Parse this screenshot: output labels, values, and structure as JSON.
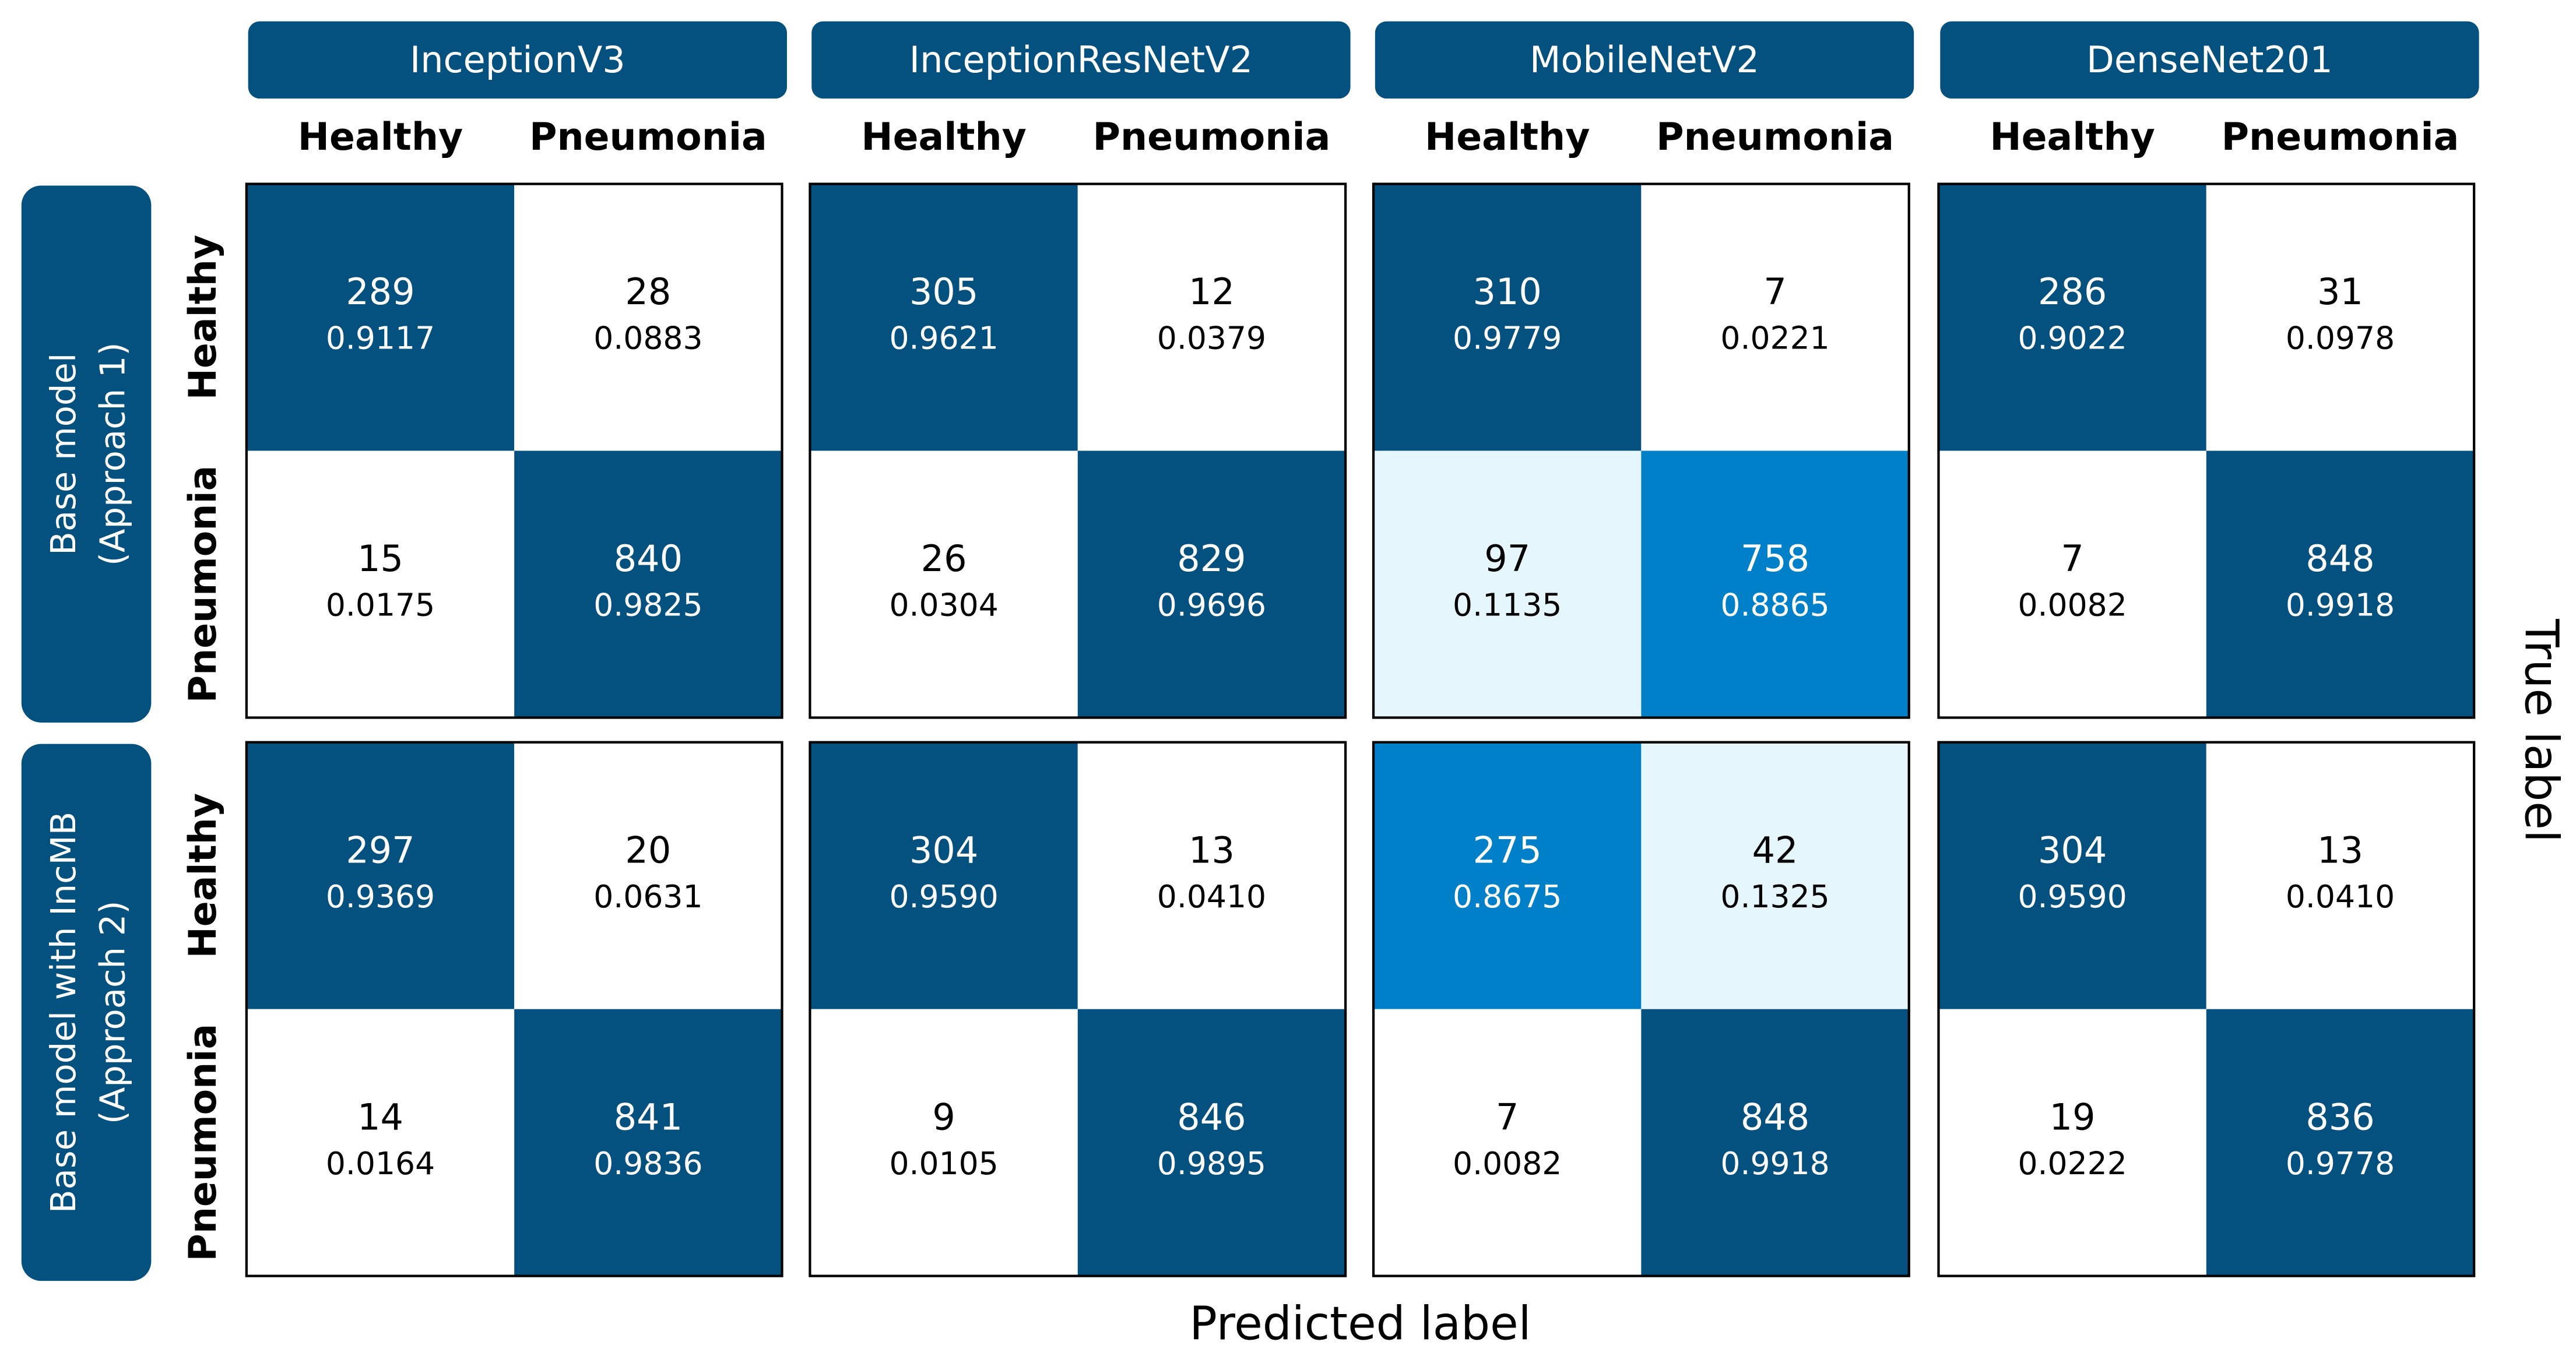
{
  "chart_data": {
    "type": "confusion_matrix_grid",
    "x_label": "Predicted label",
    "y_label": "True label",
    "classes": [
      "Healthy",
      "Pneumonia"
    ],
    "models": [
      "InceptionV3",
      "InceptionResNetV2",
      "MobileNetV2",
      "DenseNet201"
    ],
    "approaches": [
      [
        "Base model",
        "(Approach 1)"
      ],
      [
        "Base model with IncMB",
        "(Approach 2)"
      ]
    ],
    "matrices": [
      [
        {
          "counts": [
            [
              289,
              28
            ],
            [
              15,
              840
            ]
          ],
          "proportions": [
            [
              0.9117,
              0.0883
            ],
            [
              0.0175,
              0.9825
            ]
          ],
          "value_labels": [
            [
              "0.9117",
              "0.0883"
            ],
            [
              "0.0175",
              "0.9825"
            ]
          ],
          "colors": [
            [
              "#04507e",
              "#ffffff"
            ],
            [
              "#ffffff",
              "#04507e"
            ]
          ]
        },
        {
          "counts": [
            [
              305,
              12
            ],
            [
              26,
              829
            ]
          ],
          "proportions": [
            [
              0.9621,
              0.0379
            ],
            [
              0.0304,
              0.9696
            ]
          ],
          "value_labels": [
            [
              "0.9621",
              "0.0379"
            ],
            [
              "0.0304",
              "0.9696"
            ]
          ],
          "colors": [
            [
              "#04507e",
              "#ffffff"
            ],
            [
              "#ffffff",
              "#04507e"
            ]
          ]
        },
        {
          "counts": [
            [
              310,
              7
            ],
            [
              97,
              758
            ]
          ],
          "proportions": [
            [
              0.9779,
              0.0221
            ],
            [
              0.1135,
              0.8865
            ]
          ],
          "value_labels": [
            [
              "0.9779",
              "0.0221"
            ],
            [
              "0.1135",
              "0.8865"
            ]
          ],
          "colors": [
            [
              "#04507e",
              "#ffffff"
            ],
            [
              "#e6f6fd",
              "#0080c8"
            ]
          ]
        },
        {
          "counts": [
            [
              286,
              31
            ],
            [
              7,
              848
            ]
          ],
          "proportions": [
            [
              0.9022,
              0.0978
            ],
            [
              0.0082,
              0.9918
            ]
          ],
          "value_labels": [
            [
              "0.9022",
              "0.0978"
            ],
            [
              "0.0082",
              "0.9918"
            ]
          ],
          "colors": [
            [
              "#04507e",
              "#ffffff"
            ],
            [
              "#ffffff",
              "#04507e"
            ]
          ]
        }
      ],
      [
        {
          "counts": [
            [
              297,
              20
            ],
            [
              14,
              841
            ]
          ],
          "proportions": [
            [
              0.9369,
              0.0631
            ],
            [
              0.0164,
              0.9836
            ]
          ],
          "value_labels": [
            [
              "0.9369",
              "0.0631"
            ],
            [
              "0.0164",
              "0.9836"
            ]
          ],
          "colors": [
            [
              "#04507e",
              "#ffffff"
            ],
            [
              "#ffffff",
              "#04507e"
            ]
          ]
        },
        {
          "counts": [
            [
              304,
              13
            ],
            [
              9,
              846
            ]
          ],
          "proportions": [
            [
              0.959,
              0.041
            ],
            [
              0.0105,
              0.9895
            ]
          ],
          "value_labels": [
            [
              "0.9590",
              "0.0410"
            ],
            [
              "0.0105",
              "0.9895"
            ]
          ],
          "colors": [
            [
              "#04507e",
              "#ffffff"
            ],
            [
              "#ffffff",
              "#04507e"
            ]
          ]
        },
        {
          "counts": [
            [
              275,
              42
            ],
            [
              7,
              848
            ]
          ],
          "proportions": [
            [
              0.8675,
              0.1325
            ],
            [
              0.0082,
              0.9918
            ]
          ],
          "value_labels": [
            [
              "0.8675",
              "0.1325"
            ],
            [
              "0.0082",
              "0.9918"
            ]
          ],
          "colors": [
            [
              "#0080c8",
              "#e6f6fd"
            ],
            [
              "#ffffff",
              "#04507e"
            ]
          ]
        },
        {
          "counts": [
            [
              304,
              13
            ],
            [
              19,
              836
            ]
          ],
          "proportions": [
            [
              0.959,
              0.041
            ],
            [
              0.0222,
              0.9778
            ]
          ],
          "value_labels": [
            [
              "0.9590",
              "0.0410"
            ],
            [
              "0.0222",
              "0.9778"
            ]
          ],
          "colors": [
            [
              "#04507e",
              "#ffffff"
            ],
            [
              "#ffffff",
              "#04507e"
            ]
          ]
        }
      ]
    ]
  }
}
